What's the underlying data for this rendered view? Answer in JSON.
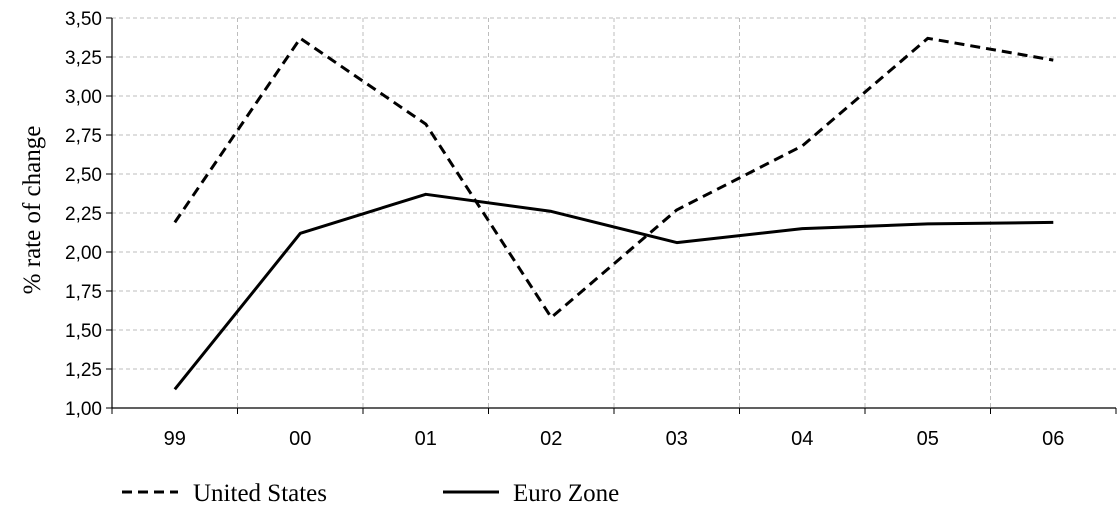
{
  "chart_data": {
    "type": "line",
    "title": "",
    "xlabel": "",
    "ylabel": "% rate of change",
    "categories": [
      "99",
      "00",
      "01",
      "02",
      "03",
      "04",
      "05",
      "06"
    ],
    "y_tick_labels": [
      "1,00",
      "1,25",
      "1,50",
      "1,75",
      "2,00",
      "2,25",
      "2,50",
      "2,75",
      "3,00",
      "3,25",
      "3,50"
    ],
    "ylim": [
      1.0,
      3.5
    ],
    "grid": true,
    "legend_position": "bottom",
    "series": [
      {
        "name": "United States",
        "style": "dashed",
        "color": "#000000",
        "values": [
          2.19,
          3.37,
          2.82,
          1.58,
          2.27,
          2.68,
          3.37,
          3.23
        ]
      },
      {
        "name": "Euro Zone",
        "style": "solid",
        "color": "#000000",
        "values": [
          1.12,
          2.12,
          2.37,
          2.26,
          2.06,
          2.15,
          2.18,
          2.19
        ]
      }
    ]
  }
}
